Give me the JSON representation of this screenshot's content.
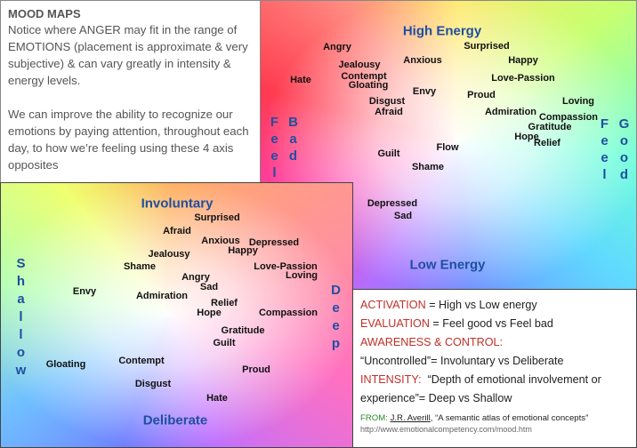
{
  "intro": {
    "title": "MOOD MAPS",
    "paragraphs": [
      "Notice where ANGER may fit in the range of EMOTIONS (placement is approximate & very subjective) & can vary greatly in intensity & energy levels.",
      "We can improve the ability to recognize our emotions by paying attention, throughout each day, to how we’re feeling using these 4 axis opposites"
    ]
  },
  "energy_map": {
    "top": "High Energy",
    "bottom": "Low Energy",
    "left": [
      "Feel",
      "Bad"
    ],
    "right": [
      "Feel",
      "Good"
    ],
    "words": [
      "Angry",
      "Jealousy",
      "Hate",
      "Contempt",
      "Gloating",
      "Anxious",
      "Surprised",
      "Happy",
      "Love-Passion",
      "Envy",
      "Disgust",
      "Afraid",
      "Proud",
      "Loving",
      "Admiration",
      "Compassion",
      "Gratitude",
      "Hope",
      "Relief",
      "Flow",
      "Guilt",
      "Shame",
      "Depressed",
      "Sad"
    ]
  },
  "control_map": {
    "top": "Involuntary",
    "bottom": "Deliberate",
    "left": "Shallow",
    "right": "Deep",
    "words": [
      "Surprised",
      "Afraid",
      "Anxious",
      "Depressed",
      "Happy",
      "Jealousy",
      "Shame",
      "Love-Passion",
      "Loving",
      "Angry",
      "Sad",
      "Envy",
      "Admiration",
      "Relief",
      "Hope",
      "Compassion",
      "Gratitude",
      "Guilt",
      "Gloating",
      "Contempt",
      "Proud",
      "Disgust",
      "Hate"
    ]
  },
  "legend": [
    {
      "term": "ACTIVATION",
      "desc": "= High vs Low energy"
    },
    {
      "term": "EVALUATION",
      "desc": "= Feel good vs Feel bad"
    },
    {
      "term": "AWARENESS & CONTROL:",
      "desc": "“Uncontrolled”= Involuntary vs Deliberate"
    },
    {
      "term": "INTENSITY:",
      "desc": "“Depth of emotional involvement or experience”= Deep vs Shallow"
    }
  ],
  "source": {
    "label": "FROM:",
    "author": "J.R. Averill",
    "text": ", “A semantic atlas of emotional concepts”",
    "url": "http://www.emotionalcompetency.com/mood.htm"
  }
}
